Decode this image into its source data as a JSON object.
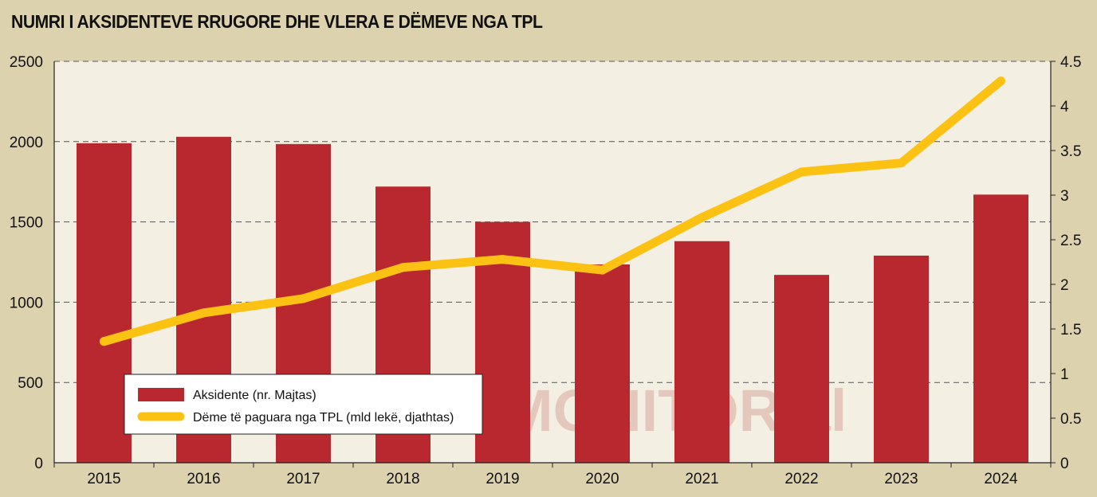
{
  "chart_data": {
    "type": "bar",
    "title": "NUMRI I AKSIDENTEVE RRUGORE DHE VLERA E DËMEVE NGA TPL",
    "categories": [
      "2015",
      "2016",
      "2017",
      "2018",
      "2019",
      "2020",
      "2021",
      "2022",
      "2023",
      "2024"
    ],
    "series": [
      {
        "name": "Aksidente (nr. Majtas)",
        "type": "bar",
        "axis": "left",
        "color": "#b8282e",
        "values": [
          1990,
          2030,
          1985,
          1720,
          1500,
          1235,
          1380,
          1170,
          1290,
          1670
        ]
      },
      {
        "name": "Dëme të paguara nga TPL (mld lekë, djathtas)",
        "type": "line",
        "axis": "right",
        "color": "#fcc213",
        "values": [
          1.36,
          1.68,
          1.84,
          2.19,
          2.28,
          2.16,
          2.75,
          3.26,
          3.36,
          4.28
        ]
      }
    ],
    "y_left": {
      "lim": [
        0,
        2500
      ],
      "ticks": [
        "0",
        "500",
        "1000",
        "1500",
        "2000",
        "2500"
      ]
    },
    "y_right": {
      "lim": [
        0,
        4.5
      ],
      "ticks": [
        "0",
        "0.5",
        "1",
        "1.5",
        "2",
        "2.5",
        "3",
        "3.5",
        "4",
        "4.5"
      ]
    },
    "grid": "dashed-horizontal",
    "legend": "bottom-left"
  },
  "watermark": "MONITOR.al",
  "colors": {
    "background": "#dcd3ae",
    "plot_background": "#f3efe2",
    "grid": "#555555"
  }
}
